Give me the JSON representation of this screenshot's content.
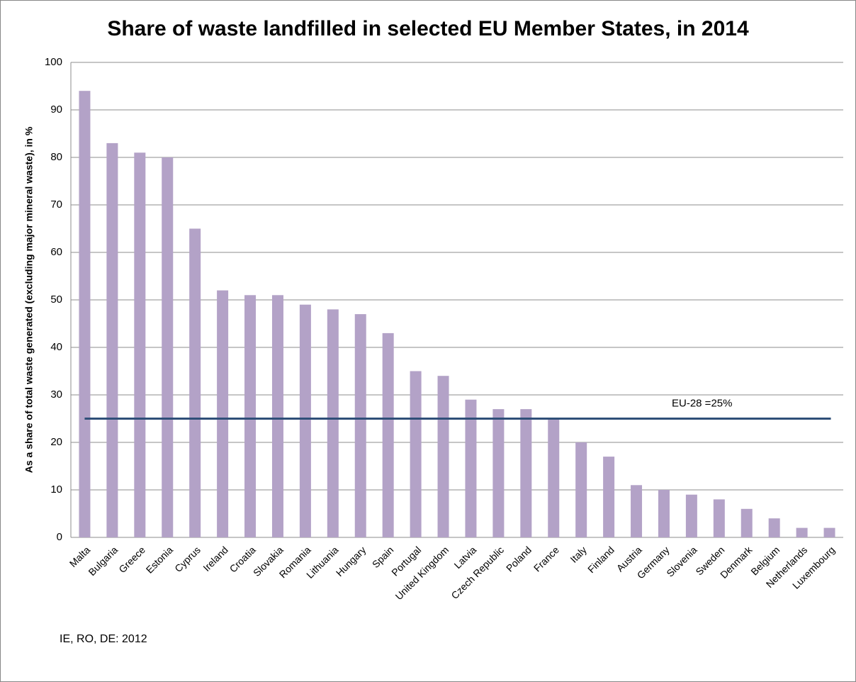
{
  "chart_data": {
    "type": "bar",
    "title": "Share of waste landfilled in selected EU Member States, in 2014",
    "ylabel": "As a share of total waste generated (excluding major mineral waste), in %",
    "categories": [
      "Malta",
      "Bulgaria",
      "Greece",
      "Estonia",
      "Cyprus",
      "Ireland",
      "Croatia",
      "Slovakia",
      "Romania",
      "Lithuania",
      "Hungary",
      "Spain",
      "Portugal",
      "United Kingdom",
      "Latvia",
      "Czech Republic",
      "Poland",
      "France",
      "Italy",
      "Finland",
      "Austria",
      "Germany",
      "Slovenia",
      "Sweden",
      "Denmark",
      "Belgium",
      "Netherlands",
      "Luxembourg"
    ],
    "values": [
      94,
      83,
      81,
      80,
      65,
      52,
      51,
      51,
      49,
      48,
      47,
      43,
      35,
      34,
      29,
      27,
      27,
      25,
      20,
      17,
      11,
      10,
      9,
      8,
      6,
      4,
      2,
      2
    ],
    "color": "#b3a2c7",
    "ylim": [
      0,
      100
    ],
    "yticks": [
      0,
      10,
      20,
      30,
      40,
      50,
      60,
      70,
      80,
      90,
      100
    ],
    "grid": true,
    "reference_line": {
      "value": 25,
      "label": "EU-28 =25%",
      "color": "#2f4f78"
    },
    "note": "IE, RO, DE: 2012"
  }
}
